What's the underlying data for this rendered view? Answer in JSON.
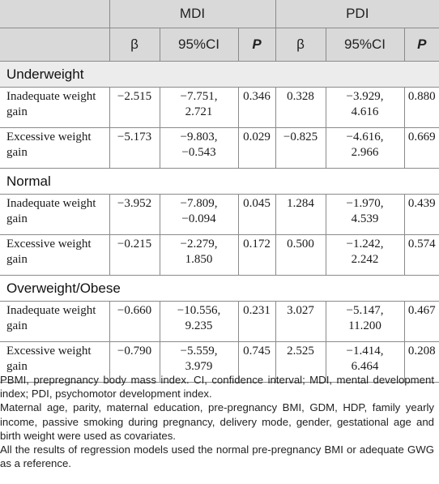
{
  "header": {
    "mdi": "MDI",
    "pdi": "PDI",
    "beta": "β",
    "ci": "95%CI",
    "p": "P"
  },
  "groups": [
    {
      "name": "Underweight",
      "rows": [
        {
          "label": "Inadequate weight gain",
          "mdi_beta": "−2.515",
          "mdi_ci_a": "−7.751,",
          "mdi_ci_b": "2.721",
          "mdi_p": "0.346",
          "pdi_beta": "0.328",
          "pdi_ci_a": "−3.929,",
          "pdi_ci_b": "4.616",
          "pdi_p": "0.880"
        },
        {
          "label": "Excessive weight gain",
          "mdi_beta": "−5.173",
          "mdi_ci_a": "−9.803,",
          "mdi_ci_b": "−0.543",
          "mdi_p": "0.029",
          "pdi_beta": "−0.825",
          "pdi_ci_a": "−4.616,",
          "pdi_ci_b": "2.966",
          "pdi_p": "0.669"
        }
      ]
    },
    {
      "name": "Normal",
      "rows": [
        {
          "label": "Inadequate weight gain",
          "mdi_beta": "−3.952",
          "mdi_ci_a": "−7.809,",
          "mdi_ci_b": "−0.094",
          "mdi_p": "0.045",
          "pdi_beta": "1.284",
          "pdi_ci_a": "−1.970,",
          "pdi_ci_b": "4.539",
          "pdi_p": "0.439"
        },
        {
          "label": "Excessive weight gain",
          "mdi_beta": "−0.215",
          "mdi_ci_a": "−2.279,",
          "mdi_ci_b": "1.850",
          "mdi_p": "0.172",
          "pdi_beta": "0.500",
          "pdi_ci_a": "−1.242,",
          "pdi_ci_b": "2.242",
          "pdi_p": "0.574"
        }
      ]
    },
    {
      "name": "Overweight/Obese",
      "rows": [
        {
          "label": "Inadequate weight gain",
          "mdi_beta": "−0.660",
          "mdi_ci_a": "−10.556,",
          "mdi_ci_b": "9.235",
          "mdi_p": "0.231",
          "pdi_beta": "3.027",
          "pdi_ci_a": "−5.147,",
          "pdi_ci_b": "11.200",
          "pdi_p": "0.467"
        },
        {
          "label": "Excessive weight gain",
          "mdi_beta": "−0.790",
          "mdi_ci_a": "−5.559,",
          "mdi_ci_b": "3.979",
          "mdi_p": "0.745",
          "pdi_beta": "2.525",
          "pdi_ci_a": "−1.414,",
          "pdi_ci_b": "6.464",
          "pdi_p": "0.208"
        }
      ]
    }
  ],
  "notes": [
    "PBMI, prepregnancy body mass index. CI, confidence interval; MDI, mental development index; PDI, psychomotor development index.",
    "Maternal age, parity, maternal education, pre-pregnancy BMI, GDM, HDP, family yearly income, passive smoking during pregnancy, delivery mode, gender, gestational age and birth weight were used as covariates.",
    "All the results of regression models used the normal pre-pregnancy BMI or adequate GWG as a reference."
  ]
}
